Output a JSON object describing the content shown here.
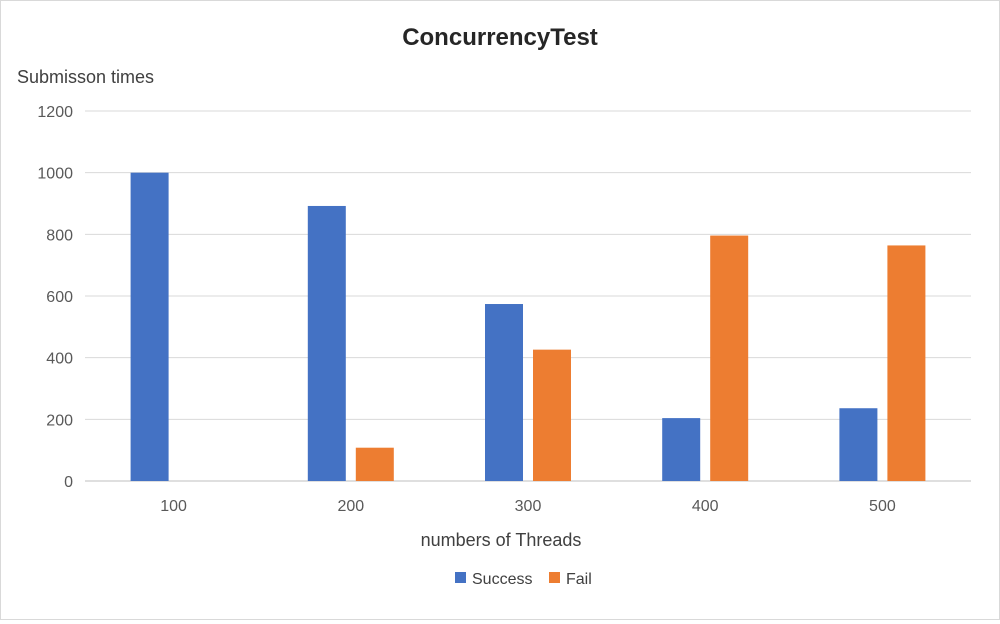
{
  "chart_data": {
    "type": "bar",
    "title": "ConcurrencyTest",
    "xlabel": "numbers of Threads",
    "ylabel": "Submisson times",
    "categories": [
      "100",
      "200",
      "300",
      "400",
      "500"
    ],
    "series": [
      {
        "name": "Success",
        "color": "#4472C4",
        "values": [
          1000,
          892,
          574,
          204,
          236
        ]
      },
      {
        "name": "Fail",
        "color": "#ED7D31",
        "values": [
          0,
          108,
          426,
          796,
          764
        ]
      }
    ],
    "ylim": [
      0,
      1200
    ],
    "yticks": [
      0,
      200,
      400,
      600,
      800,
      1000,
      1200
    ],
    "grid": true,
    "legend_position": "bottom"
  }
}
